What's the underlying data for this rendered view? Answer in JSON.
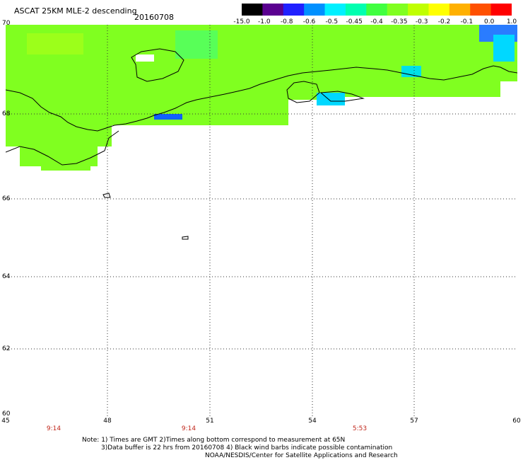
{
  "header": {
    "title": "ASCAT 25KM MLE-2 descending",
    "date": "20160708"
  },
  "colorbar": {
    "labels": [
      "-15.0",
      "-1.0",
      "-0.8",
      "-0.6",
      "-0.5",
      "-0.45",
      "-0.4",
      "-0.35",
      "-0.3",
      "-0.2",
      "-0.1",
      "0.0",
      "1.0"
    ],
    "colors": [
      "#000000",
      "#5a0090",
      "#2020ff",
      "#0090ff",
      "#00f0ff",
      "#00ffb0",
      "#40ff40",
      "#80ff20",
      "#c0ff00",
      "#ffff00",
      "#ffb000",
      "#ff5000",
      "#ff0000"
    ]
  },
  "map": {
    "lat_labels": [
      "70",
      "68",
      "66",
      "64",
      "62",
      "60"
    ],
    "lon_labels": [
      "45",
      "48",
      "51",
      "54",
      "57",
      "60"
    ],
    "pass_times": [
      "9:14",
      "9:14",
      "5:53"
    ],
    "swath_color": "#80ff20"
  },
  "footer": {
    "line1": "Note: 1) Times are GMT 2)Times along bottom correspond to measurement at 65N",
    "line2": "3)Data buffer is 22 hrs from 20160708 4) Black wind barbs indicate possible contamination",
    "line3": "NOAA/NESDIS/Center for Satellite Applications and Research"
  }
}
